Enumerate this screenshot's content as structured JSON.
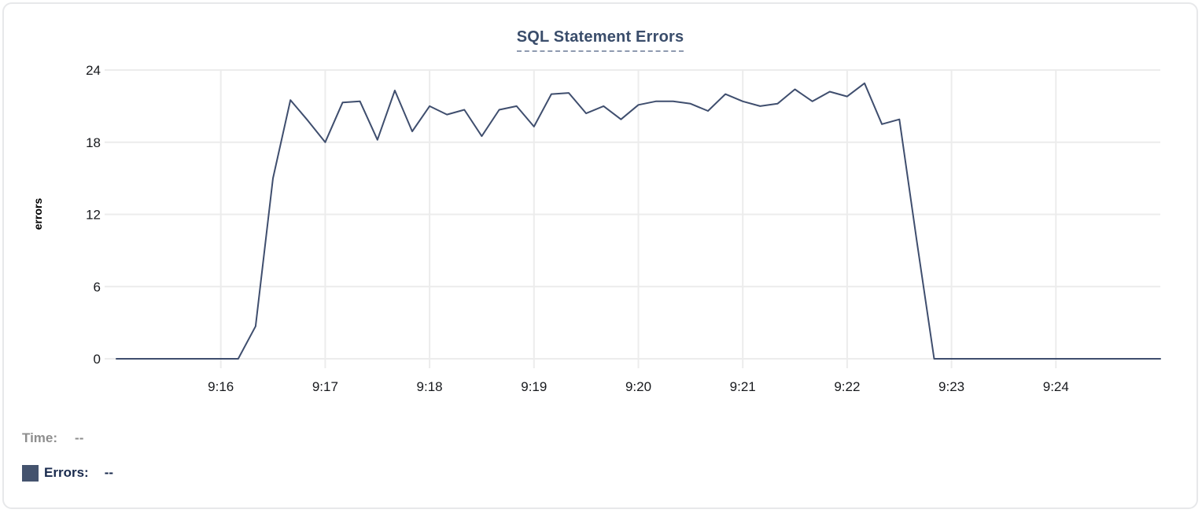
{
  "title": "SQL Statement Errors",
  "readout": {
    "time_label": "Time:",
    "time_value": "--",
    "errors_label": "Errors:",
    "errors_value": "--"
  },
  "colors": {
    "line": "#3f4e6e",
    "title": "#3a4d6b",
    "title_underline": "#8e9ab0",
    "grid": "#ececec",
    "tick_text": "#17191d",
    "axis_title_text": "#000000",
    "time_label": "#8e8e8e",
    "errors_label": "#192a4d",
    "swatch": "#44536e",
    "card_border": "#e7e8ea"
  },
  "chart_data": {
    "type": "line",
    "title": "SQL Statement Errors",
    "xlabel": "",
    "ylabel": "errors",
    "ylim": [
      0,
      24
    ],
    "xlim": [
      "9:15:00",
      "9:25:00"
    ],
    "y_ticks": [
      0,
      6,
      12,
      18,
      24
    ],
    "x_ticks": [
      "9:16",
      "9:17",
      "9:18",
      "9:19",
      "9:20",
      "9:21",
      "9:22",
      "9:23",
      "9:24"
    ],
    "grid": true,
    "legend_position": "bottom-left",
    "series": [
      {
        "name": "Errors",
        "color": "#3f4e6e",
        "points": [
          [
            "9:15:00",
            0
          ],
          [
            "9:15:10",
            0
          ],
          [
            "9:15:20",
            0
          ],
          [
            "9:15:30",
            0
          ],
          [
            "9:15:40",
            0
          ],
          [
            "9:15:50",
            0
          ],
          [
            "9:16:00",
            0
          ],
          [
            "9:16:10",
            0
          ],
          [
            "9:16:20",
            2.7
          ],
          [
            "9:16:30",
            15
          ],
          [
            "9:16:40",
            21.5
          ],
          [
            "9:16:50",
            19.8
          ],
          [
            "9:17:00",
            18
          ],
          [
            "9:17:10",
            21.3
          ],
          [
            "9:17:20",
            21.4
          ],
          [
            "9:17:30",
            18.2
          ],
          [
            "9:17:40",
            22.3
          ],
          [
            "9:17:50",
            18.9
          ],
          [
            "9:18:00",
            21
          ],
          [
            "9:18:10",
            20.3
          ],
          [
            "9:18:20",
            20.7
          ],
          [
            "9:18:30",
            18.5
          ],
          [
            "9:18:40",
            20.7
          ],
          [
            "9:18:50",
            21
          ],
          [
            "9:19:00",
            19.3
          ],
          [
            "9:19:10",
            22
          ],
          [
            "9:19:20",
            22.1
          ],
          [
            "9:19:30",
            20.4
          ],
          [
            "9:19:40",
            21
          ],
          [
            "9:19:50",
            19.9
          ],
          [
            "9:20:00",
            21.1
          ],
          [
            "9:20:10",
            21.4
          ],
          [
            "9:20:20",
            21.4
          ],
          [
            "9:20:30",
            21.2
          ],
          [
            "9:20:40",
            20.6
          ],
          [
            "9:20:50",
            22
          ],
          [
            "9:21:00",
            21.4
          ],
          [
            "9:21:10",
            21
          ],
          [
            "9:21:20",
            21.2
          ],
          [
            "9:21:30",
            22.4
          ],
          [
            "9:21:40",
            21.4
          ],
          [
            "9:21:50",
            22.2
          ],
          [
            "9:22:00",
            21.8
          ],
          [
            "9:22:10",
            22.9
          ],
          [
            "9:22:20",
            19.5
          ],
          [
            "9:22:30",
            19.9
          ],
          [
            "9:22:40",
            9.8
          ],
          [
            "9:22:50",
            0
          ],
          [
            "9:23:00",
            0
          ],
          [
            "9:23:10",
            0
          ],
          [
            "9:23:20",
            0
          ],
          [
            "9:23:30",
            0
          ],
          [
            "9:23:40",
            0
          ],
          [
            "9:23:50",
            0
          ],
          [
            "9:24:00",
            0
          ],
          [
            "9:24:10",
            0
          ],
          [
            "9:24:20",
            0
          ],
          [
            "9:24:30",
            0
          ],
          [
            "9:24:40",
            0
          ],
          [
            "9:24:50",
            0
          ],
          [
            "9:25:00",
            0
          ]
        ]
      }
    ]
  }
}
